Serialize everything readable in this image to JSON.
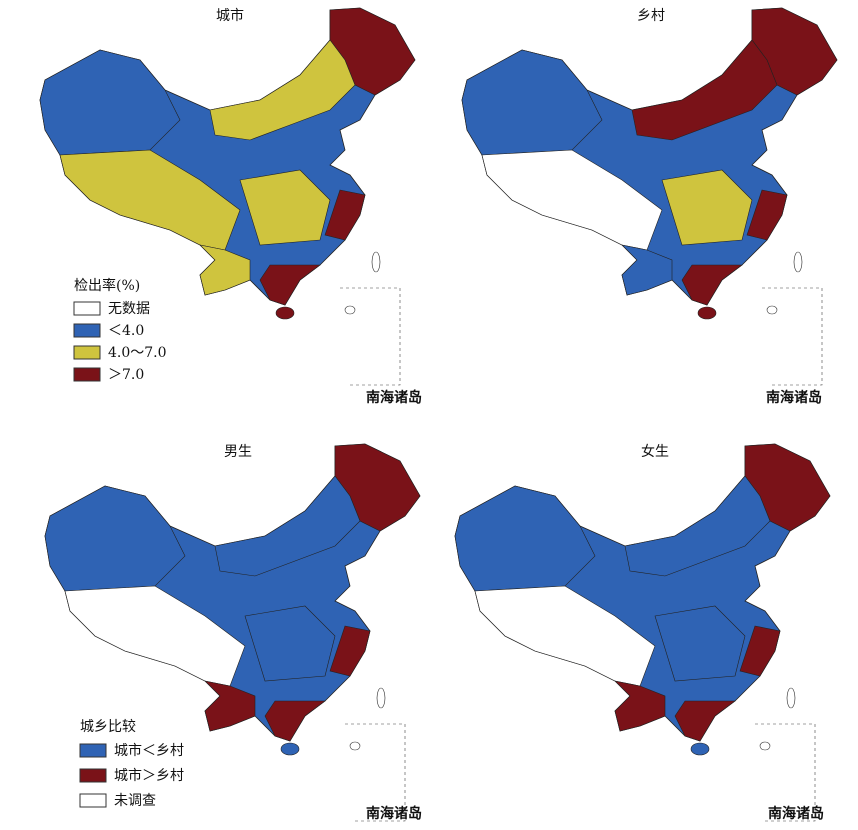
{
  "panels": [
    {
      "title": "城市",
      "inset_label": "南海诸岛"
    },
    {
      "title": "乡村",
      "inset_label": "南海诸岛"
    },
    {
      "title": "男生",
      "inset_label": "南海诸岛"
    },
    {
      "title": "女生",
      "inset_label": "南海诸岛"
    }
  ],
  "legend_rate": {
    "title": "检出率(%)",
    "items": [
      "无数据",
      "＜4.0",
      "4.0～7.0",
      "＞7.0"
    ]
  },
  "legend_compare": {
    "title": "城乡比较",
    "items": [
      "城市＜乡村",
      "城市＞乡村",
      "未调查"
    ]
  }
}
